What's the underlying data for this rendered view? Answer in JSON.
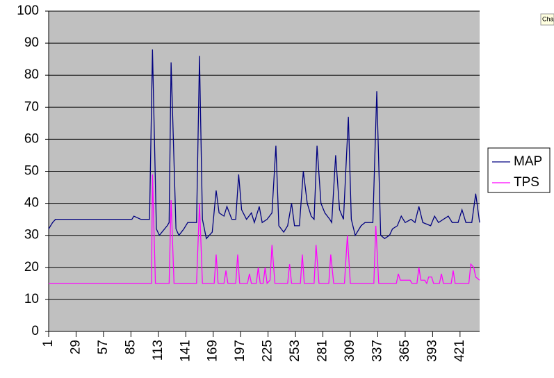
{
  "chart_data": {
    "type": "line",
    "xlim": [
      1,
      441
    ],
    "xticks": [
      1,
      29,
      57,
      85,
      113,
      141,
      169,
      197,
      225,
      253,
      281,
      309,
      337,
      365,
      393,
      421
    ],
    "ylim": [
      0,
      100
    ],
    "yticks": [
      0,
      10,
      20,
      30,
      40,
      50,
      60,
      70,
      80,
      90,
      100
    ],
    "grid": true,
    "legend": "right",
    "button": "Cha",
    "series": [
      {
        "name": "MAP",
        "color": "#000080",
        "x": [
          1,
          5,
          8,
          86,
          88,
          95,
          104,
          107,
          111,
          114,
          122,
          124,
          126,
          131,
          134,
          139,
          143,
          152,
          155,
          158,
          162,
          168,
          172,
          175,
          180,
          183,
          188,
          192,
          195,
          198,
          203,
          208,
          211,
          216,
          219,
          224,
          229,
          233,
          236,
          241,
          245,
          249,
          252,
          257,
          261,
          265,
          269,
          272,
          275,
          279,
          283,
          288,
          290,
          294,
          298,
          302,
          307,
          310,
          314,
          320,
          324,
          332,
          336,
          340,
          344,
          349,
          352,
          357,
          361,
          365,
          371,
          375,
          379,
          383,
          391,
          395,
          399,
          409,
          413,
          419,
          423,
          427,
          433,
          437,
          441
        ],
        "values": [
          32,
          34,
          35,
          35,
          36,
          35,
          35,
          88,
          32,
          30,
          33,
          34,
          84,
          32,
          30,
          32,
          34,
          34,
          86,
          35,
          29,
          31,
          44,
          37,
          36,
          39,
          35,
          35,
          49,
          38,
          35,
          37,
          34,
          39,
          34,
          35,
          37,
          58,
          33,
          31,
          33,
          40,
          33,
          33,
          50,
          40,
          36,
          35,
          58,
          40,
          37,
          35,
          34,
          55,
          38,
          35,
          67,
          35,
          30,
          33,
          34,
          34,
          75,
          30,
          29,
          30,
          32,
          33,
          36,
          34,
          35,
          34,
          39,
          34,
          33,
          36,
          34,
          36,
          34,
          34,
          38,
          34,
          34,
          43,
          34
        ]
      },
      {
        "name": "TPS",
        "color": "#ff00ff",
        "x": [
          1,
          106,
          107,
          110,
          124,
          126,
          129,
          152,
          155,
          158,
          170,
          172,
          174,
          180,
          182,
          184,
          192,
          194,
          196,
          204,
          206,
          208,
          213,
          215,
          217,
          220,
          222,
          224,
          227,
          229,
          232,
          245,
          247,
          249,
          258,
          260,
          262,
          272,
          274,
          277,
          287,
          289,
          292,
          303,
          306,
          309,
          333,
          335,
          338,
          356,
          358,
          360,
          370,
          372,
          377,
          379,
          381,
          385,
          387,
          389,
          392,
          394,
          400,
          402,
          404,
          412,
          414,
          416,
          430,
          432,
          435,
          437,
          441
        ],
        "values": [
          15,
          15,
          49,
          15,
          15,
          41,
          15,
          15,
          40,
          15,
          15,
          24,
          15,
          15,
          19,
          15,
          15,
          24,
          15,
          15,
          18,
          15,
          15,
          20,
          15,
          15,
          20,
          15,
          16,
          27,
          15,
          15,
          21,
          15,
          15,
          24,
          15,
          15,
          27,
          15,
          15,
          24,
          15,
          15,
          30,
          15,
          15,
          33,
          15,
          15,
          18,
          16,
          16,
          15,
          15,
          20,
          16,
          16,
          15,
          17,
          17,
          15,
          15,
          18,
          15,
          15,
          19,
          15,
          15,
          21,
          20,
          17,
          16
        ]
      }
    ]
  }
}
